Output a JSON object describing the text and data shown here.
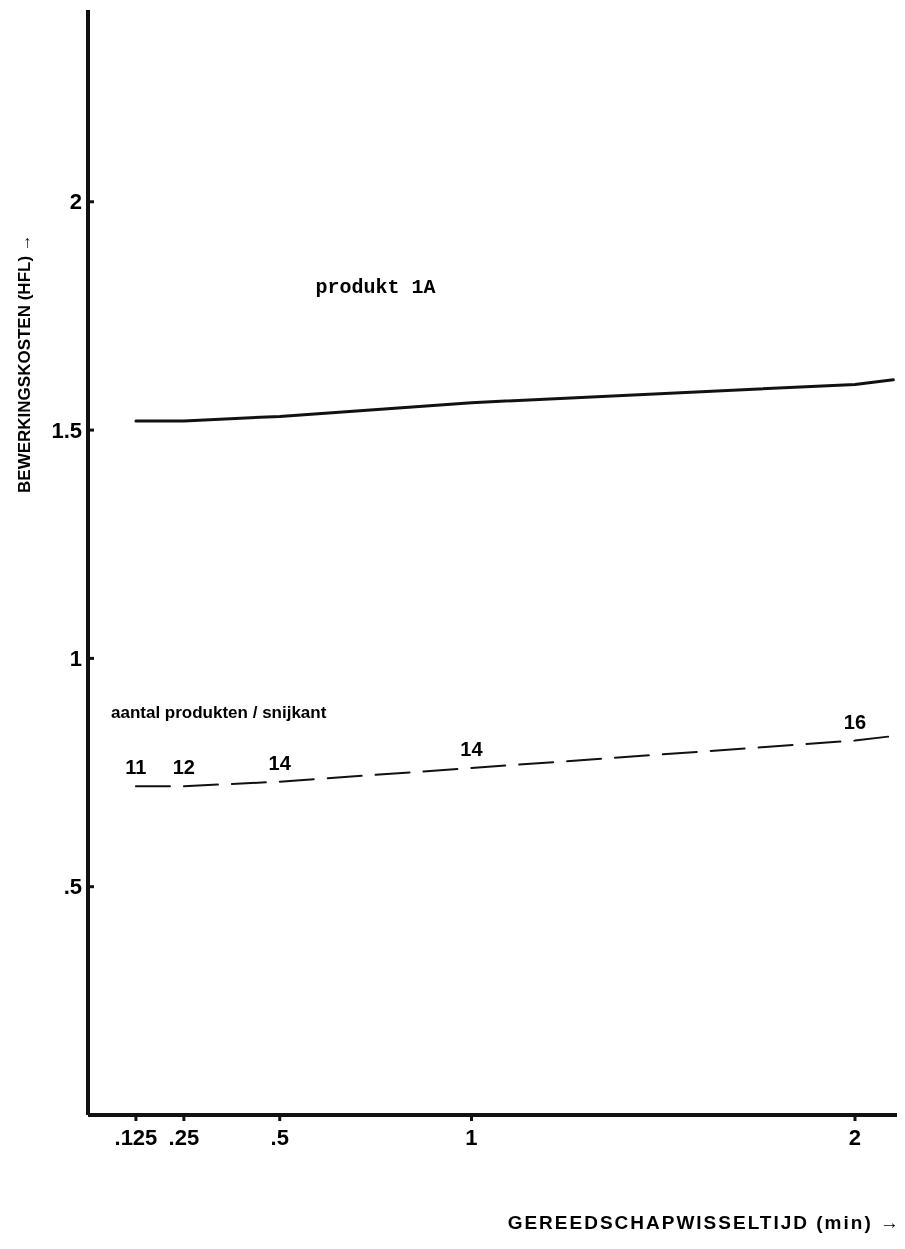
{
  "chart_data": {
    "type": "line",
    "xlabel": "GEREEDSCHAPWISSELTIJD  (min)  →",
    "ylabel": "BEWERKINGSKOSTEN  (HFL)  →",
    "x": [
      0.125,
      0.25,
      0.5,
      1,
      2,
      2.1
    ],
    "series": [
      {
        "color": "#111111",
        "values": [
          1.52,
          1.52,
          1.53,
          1.56,
          1.6,
          1.61
        ],
        "line_style": "solid"
      },
      {
        "color": "#111111",
        "values": [
          0.72,
          0.72,
          0.73,
          0.76,
          0.82,
          0.83
        ],
        "line_style": "dashed"
      }
    ],
    "xlim": [
      0,
      2.12
    ],
    "xticks": [
      {
        "value": 0.125,
        "label": ".125"
      },
      {
        "value": 0.25,
        "label": ".25"
      },
      {
        "value": 0.5,
        "label": ".5"
      },
      1,
      2
    ],
    "ylim": [
      0,
      2.42
    ],
    "yticks": [
      {
        "value": 0.5,
        "label": ".5"
      },
      1,
      1.5,
      2
    ],
    "grid": false,
    "marker": "none",
    "annotations": [
      "produkt 1A",
      "aantal produkten / snijkant",
      {
        "text": "11",
        "x": 0.125,
        "y": 0.72
      },
      {
        "text": "12",
        "x": 0.25,
        "y": 0.72
      },
      {
        "text": "14",
        "x": 0.5,
        "y": 0.73
      },
      {
        "text": "14",
        "x": 1,
        "y": 0.76
      },
      {
        "text": "16",
        "x": 2,
        "y": 0.82
      }
    ]
  }
}
